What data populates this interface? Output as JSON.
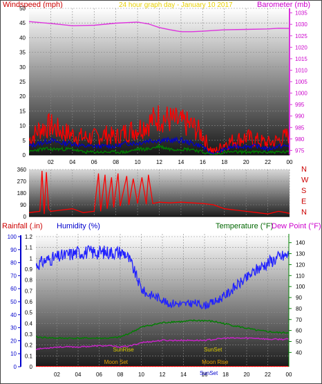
{
  "header": {
    "wind_label": "Windspeed (mph)",
    "title": "24 hour graph day - January 10 2017",
    "baro_label": "Barometer (mb)"
  },
  "lower_header": {
    "rain_label": "Rainfall (.in)",
    "humidity_label": "Humidity (%)",
    "temp_label": "Temperature (°F)",
    "dew_label": "Dew Point (°F)"
  },
  "colors": {
    "wind_text": "#cc0000",
    "title_text": "#e8d000",
    "baro_text": "#cc00cc",
    "rain_text": "#cc0000",
    "humidity_text": "#0000cc",
    "temp_text": "#006600",
    "dew_text": "#cc00cc",
    "wind_gust": "#ff0000",
    "wind_avg": "#0000cc",
    "wind_low": "#008000",
    "baro_line": "#dd33dd",
    "direction_line": "#ff0000",
    "humidity_line": "#2222ff",
    "temp_line": "#008000",
    "dew_line": "#cc22cc",
    "rain_line": "#ff0000",
    "sunrise_text": "#ddcc00",
    "moon_text": "#e8a000"
  },
  "chart_data": [
    {
      "type": "line",
      "name": "wind-baro",
      "x_ticks": [
        "02",
        "04",
        "06",
        "08",
        "10",
        "12",
        "14",
        "16",
        "18",
        "20",
        "22",
        "00"
      ],
      "xlim": [
        0,
        24
      ],
      "y_left": {
        "ticks": [
          0,
          5,
          10,
          15,
          20,
          25,
          30,
          35,
          40,
          45,
          50
        ],
        "ylim": [
          0,
          50
        ]
      },
      "y_right": {
        "ticks": [
          975,
          980,
          985,
          990,
          995,
          1000,
          1005,
          1010,
          1015,
          1020,
          1025,
          1030,
          1035
        ],
        "ylim": [
          973,
          1037
        ]
      },
      "series": [
        {
          "axis": "left",
          "x": [
            0,
            1,
            2,
            3,
            4,
            5,
            6,
            7,
            8,
            9,
            10,
            11,
            12,
            13,
            14,
            15,
            16,
            16.5,
            17,
            17.5,
            18,
            19,
            20,
            21,
            22,
            23,
            24
          ],
          "y": [
            5,
            9,
            10,
            8,
            7,
            6,
            6,
            7,
            6,
            8,
            9,
            11,
            13,
            12,
            11,
            10,
            7,
            3,
            1,
            2,
            4,
            5,
            6,
            5,
            4,
            5,
            7
          ]
        },
        {
          "axis": "left",
          "x": [
            0,
            1,
            2,
            3,
            4,
            5,
            6,
            7,
            8,
            9,
            10,
            11,
            12,
            13,
            14,
            15,
            16,
            16.5,
            17,
            17.5,
            18,
            19,
            20,
            21,
            22,
            23,
            24
          ],
          "y": [
            3,
            4,
            5,
            4,
            4,
            3,
            3,
            3,
            3,
            4,
            4,
            5,
            5,
            5,
            5,
            4,
            3,
            1,
            0.5,
            1,
            2,
            3,
            3,
            3,
            2,
            3,
            3
          ]
        },
        {
          "axis": "left",
          "x": [
            0,
            1,
            2,
            3,
            4,
            5,
            6,
            7,
            8,
            9,
            10,
            11,
            12,
            13,
            14,
            15,
            16,
            16.5,
            17,
            17.5,
            18,
            19,
            20,
            21,
            22,
            23,
            24
          ],
          "y": [
            1,
            2,
            2,
            2,
            2,
            1,
            1,
            1,
            1,
            1,
            2,
            2,
            3,
            2,
            2,
            2,
            1,
            0.5,
            0,
            0.5,
            1,
            1,
            1,
            1,
            1,
            1,
            1
          ]
        },
        {
          "axis": "right",
          "x": [
            0,
            2,
            4,
            6,
            8,
            10,
            11,
            12,
            13,
            14,
            15,
            16,
            18,
            20,
            22,
            23,
            24
          ],
          "y": [
            1031.2,
            1030.4,
            1029.4,
            1029.6,
            1030.5,
            1031,
            1030.2,
            1028.6,
            1027.6,
            1026.8,
            1026.8,
            1027,
            1027.6,
            1027.8,
            1028,
            1028.3,
            1028.2
          ]
        }
      ]
    },
    {
      "type": "line",
      "name": "wind-direction",
      "x_ticks": [
        "02",
        "04",
        "06",
        "08",
        "10",
        "12",
        "14",
        "16",
        "18",
        "20",
        "22",
        "00"
      ],
      "xlim": [
        0,
        24
      ],
      "y_ticks": [
        0,
        90,
        180,
        270,
        360
      ],
      "ylim": [
        0,
        360
      ],
      "compass_labels": [
        "N",
        "W",
        "S",
        "E",
        "N"
      ],
      "series": [
        {
          "x": [
            0,
            1,
            1.2,
            1.4,
            1.6,
            1.8,
            2,
            3,
            4,
            5,
            6,
            6.4,
            6.6,
            7,
            7.2,
            7.6,
            7.8,
            8.2,
            8.4,
            9,
            9.2,
            9.6,
            10,
            10.4,
            10.8,
            11,
            11.4,
            12,
            13,
            14,
            15,
            16,
            17,
            18,
            19,
            20,
            21,
            22,
            23,
            24
          ],
          "y": [
            30,
            40,
            350,
            20,
            340,
            60,
            40,
            50,
            60,
            30,
            40,
            330,
            40,
            320,
            60,
            300,
            70,
            330,
            80,
            310,
            90,
            290,
            100,
            300,
            95,
            320,
            100,
            110,
            105,
            110,
            105,
            100,
            90,
            60,
            50,
            40,
            30,
            20,
            40,
            25
          ]
        }
      ]
    },
    {
      "type": "line",
      "name": "rain-humidity-temp",
      "x_ticks": [
        "02",
        "04",
        "06",
        "08",
        "10",
        "12",
        "14",
        "16",
        "18",
        "20",
        "22",
        "00"
      ],
      "xlim": [
        0,
        24
      ],
      "y_humidity": {
        "ticks": [
          0,
          10,
          20,
          30,
          40,
          50,
          60,
          70,
          80,
          90,
          100
        ],
        "ylim": [
          0,
          100
        ]
      },
      "y_rain": {
        "ticks": [
          0,
          0.1,
          0.2,
          0.3,
          0.4,
          0.5,
          0.6,
          0.7,
          0.8,
          0.9,
          1,
          1.1,
          1.2
        ],
        "ylim": [
          0,
          1.2
        ]
      },
      "y_temp": {
        "ticks": [
          40,
          50,
          60,
          70,
          80,
          90,
          100,
          110,
          120,
          130,
          140
        ],
        "ylim": [
          27,
          148
        ]
      },
      "series": [
        {
          "axis": "humidity",
          "x": [
            0,
            1,
            2,
            3,
            4,
            5,
            6,
            7,
            8,
            8.5,
            9,
            9.5,
            10,
            10.5,
            11,
            12,
            12.5,
            13,
            14,
            15,
            16,
            17,
            18,
            19,
            20,
            21,
            22,
            23,
            24
          ],
          "y": [
            78,
            82,
            84,
            86,
            88,
            88,
            88,
            88,
            88,
            87,
            80,
            70,
            60,
            56,
            55,
            52,
            48,
            49,
            48,
            49,
            47,
            50,
            55,
            62,
            68,
            75,
            80,
            84,
            86
          ]
        },
        {
          "axis": "temp",
          "x": [
            0,
            2,
            4,
            6,
            7,
            8,
            9,
            10,
            11,
            12,
            13,
            14,
            15,
            16,
            17,
            18,
            19,
            20,
            21,
            22,
            23,
            24
          ],
          "y": [
            54,
            53,
            53,
            53,
            53,
            54,
            58,
            63,
            65,
            67,
            68,
            68,
            69,
            69,
            68,
            66,
            64,
            62,
            60,
            59,
            58,
            58
          ]
        },
        {
          "axis": "temp",
          "x": [
            0,
            2,
            4,
            6,
            7,
            8,
            9,
            10,
            11,
            12,
            13,
            14,
            15,
            16,
            17,
            18,
            19,
            20,
            21,
            22,
            23,
            24
          ],
          "y": [
            43,
            45,
            45,
            46,
            46,
            45,
            46,
            49,
            50,
            51,
            51,
            51,
            51,
            51,
            52,
            53,
            53,
            53,
            53,
            52,
            52,
            52
          ]
        },
        {
          "axis": "rain",
          "x": [
            0,
            24
          ],
          "y": [
            0,
            0
          ]
        }
      ],
      "annotations": [
        {
          "text": "SunRise",
          "x": 8.3
        },
        {
          "text": "SunSet",
          "x": 16.8
        },
        {
          "text": "Moon Set",
          "x": 7.6
        },
        {
          "text": "Moon Rise",
          "x": 17.0
        },
        {
          "text": "SunSet",
          "x": 16.4
        }
      ]
    }
  ]
}
